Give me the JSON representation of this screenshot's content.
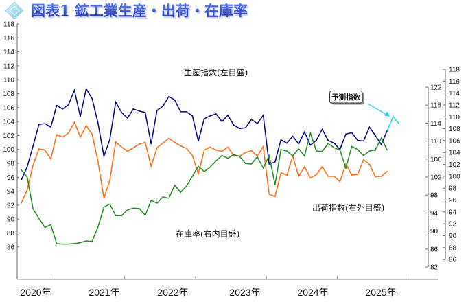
{
  "title": "図表1 鉱工業生産・出荷・在庫率",
  "title_icon": "diamond-emblem-icon",
  "chart_data": {
    "type": "line",
    "x": [
      "2020-07",
      "2020-08",
      "2020-09",
      "2020-10",
      "2020-11",
      "2020-12",
      "2021-01",
      "2021-02",
      "2021-03",
      "2021-04",
      "2021-05",
      "2021-06",
      "2021-07",
      "2021-08",
      "2021-09",
      "2021-10",
      "2021-11",
      "2021-12",
      "2022-01",
      "2022-02",
      "2022-03",
      "2022-04",
      "2022-05",
      "2022-06",
      "2022-07",
      "2022-08",
      "2022-09",
      "2022-10",
      "2022-11",
      "2022-12",
      "2023-01",
      "2023-02",
      "2023-03",
      "2023-04",
      "2023-05",
      "2023-06",
      "2023-07",
      "2023-08",
      "2023-09",
      "2023-10",
      "2023-11",
      "2023-12",
      "2024-01",
      "2024-02",
      "2024-03",
      "2024-04",
      "2024-05",
      "2024-06",
      "2024-07",
      "2024-08",
      "2024-09",
      "2024-10",
      "2024-11",
      "2024-12",
      "2025-01",
      "2025-02",
      "2025-03",
      "2025-04",
      "2025-05",
      "2025-06",
      "2025-07",
      "2025-08",
      "2025-09"
    ],
    "x_tick_labels": [
      "2020年",
      "2021年",
      "2022年",
      "2023年",
      "2024年",
      "2025年"
    ],
    "series": [
      {
        "name": "生産指数(左目盛)",
        "axis": "left",
        "color": "#000080",
        "values": [
          95.6,
          97.5,
          100.5,
          103.6,
          103.7,
          103.2,
          106.3,
          105.8,
          106.4,
          108.5,
          104.7,
          108.7,
          107.3,
          103.8,
          99.0,
          101.4,
          106.8,
          105.3,
          104.5,
          105.8,
          105.5,
          105.3,
          100.8,
          105.6,
          106.2,
          107.6,
          107.1,
          105.4,
          105.4,
          104.8,
          101.2,
          104.4,
          104.8,
          105.1,
          104.0,
          104.9,
          103.5,
          103.0,
          103.1,
          104.3,
          103.7,
          104.9,
          97.9,
          98.2,
          101.4,
          100.9,
          101.9,
          100.8,
          102.5,
          100.6,
          101.3,
          102.9,
          101.3,
          100.9,
          100.0,
          102.2,
          102.4,
          101.3,
          101.2,
          103.2,
          102.0,
          100.7,
          102.7
        ]
      },
      {
        "name": "出荷指数(右外目盛)",
        "axis": "right-outer",
        "color": "#ff6a10",
        "values": [
          95.5,
          97.7,
          101.9,
          104.6,
          104.4,
          102.9,
          107.0,
          106.6,
          107.3,
          109.1,
          106.6,
          108.5,
          107.1,
          102.5,
          96.3,
          99.3,
          105.8,
          104.9,
          104.2,
          104.8,
          105.4,
          105.7,
          101.7,
          104.8,
          105.6,
          106.4,
          105.7,
          105.1,
          104.7,
          103.5,
          100.4,
          104.4,
          104.9,
          104.4,
          104.2,
          104.9,
          103.5,
          103.4,
          104.0,
          104.3,
          103.4,
          105.0,
          97.0,
          96.6,
          100.6,
          100.2,
          103.4,
          100.0,
          101.6,
          99.7,
          100.3,
          101.6,
          100.0,
          100.0,
          99.1,
          102.1,
          100.2,
          100.3,
          102.8,
          102.0,
          99.9,
          100.0,
          100.8
        ]
      },
      {
        "name": "在庫率(右内目盛)",
        "axis": "right-inner",
        "color": "#1e8c1e",
        "values": [
          103.6,
          102.0,
          94.9,
          92.8,
          90.8,
          91.4,
          87.2,
          87.1,
          87.1,
          87.2,
          87.4,
          87.8,
          87.7,
          90.9,
          95.3,
          96.0,
          93.4,
          93.4,
          94.7,
          95.1,
          95.0,
          93.5,
          96.8,
          96.2,
          97.6,
          97.3,
          100.2,
          98.6,
          100.0,
          102.2,
          104.4,
          103.2,
          104.2,
          105.6,
          106.8,
          106.2,
          107.0,
          106.6,
          105.0,
          104.9,
          106.5,
          104.0,
          106.8,
          100.3,
          108.1,
          107.8,
          106.7,
          108.3,
          106.7,
          111.8,
          107.8,
          107.7,
          109.5,
          108.5,
          108.0,
          104.0,
          108.8,
          108.1,
          106.8,
          107.8,
          108.0,
          110.7,
          108.0
        ]
      }
    ],
    "forecast": {
      "label": "予測指数",
      "color": "#22ccee",
      "x": [
        "2025-10",
        "2025-11"
      ],
      "values": [
        104.7,
        103.7
      ]
    },
    "axes": {
      "left": {
        "ylim": [
          86,
          118
        ],
        "ticks": [
          "118",
          "116",
          "114",
          "112",
          "110",
          "108",
          "106",
          "104",
          "102",
          "100",
          "98",
          "96",
          "94",
          "92",
          "90",
          "88",
          "86"
        ]
      },
      "right_inner": {
        "ylim": [
          82,
          122
        ],
        "ticks": [
          "122",
          "118",
          "114",
          "110",
          "106",
          "102",
          "98",
          "94",
          "90",
          "86",
          "82"
        ]
      },
      "right_outer": {
        "ylim": [
          86,
          118
        ],
        "ticks": [
          "118",
          "116",
          "114",
          "112",
          "110",
          "108",
          "106",
          "104",
          "102",
          "100",
          "98",
          "96",
          "94",
          "92",
          "90",
          "88",
          "86"
        ]
      }
    },
    "grid": false
  }
}
